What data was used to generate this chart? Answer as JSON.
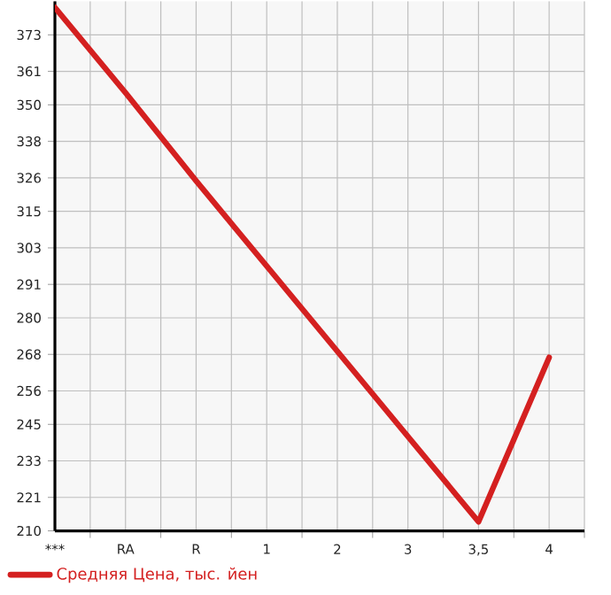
{
  "chart_data": {
    "type": "line",
    "categories": [
      "***",
      "RA",
      "R",
      "1",
      "2",
      "3",
      "3,5",
      "4"
    ],
    "series": [
      {
        "name": "Средняя Цена, тыс. йен",
        "color": "#d42020",
        "values": [
          382,
          354,
          325,
          297,
          269,
          241,
          213,
          267
        ]
      }
    ],
    "ylim": [
      210,
      384
    ],
    "yticks": [
      210,
      221,
      233,
      245,
      256,
      268,
      280,
      291,
      303,
      315,
      326,
      338,
      350,
      361,
      373
    ],
    "grid": true,
    "legend": "bottom left",
    "marker": "none",
    "line_style": "solid"
  }
}
